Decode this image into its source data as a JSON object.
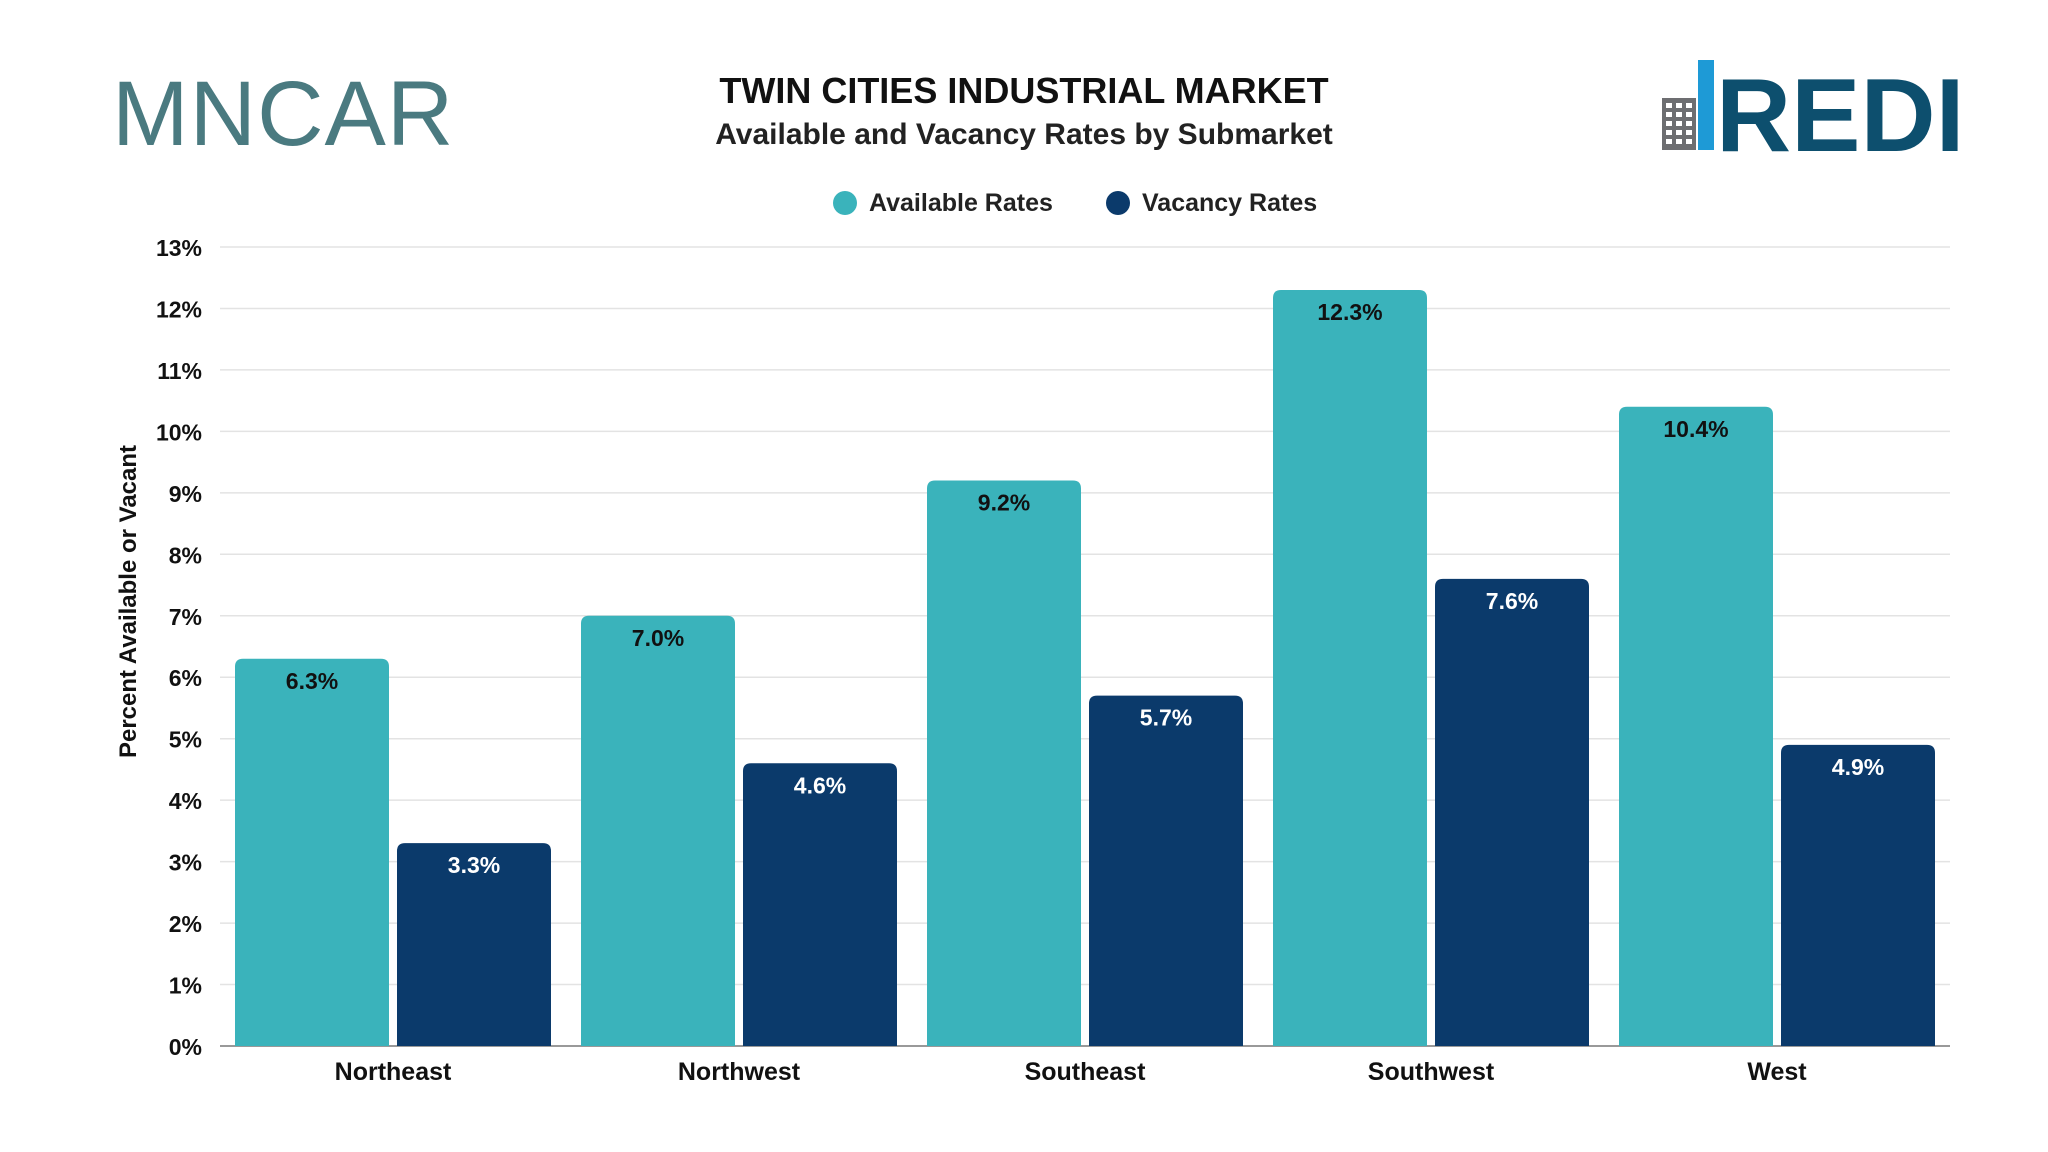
{
  "header": {
    "title": "TWIN CITIES INDUSTRIAL MARKET",
    "subtitle": "Available and Vacancy Rates by Submarket"
  },
  "logos": {
    "left": {
      "text": "MNCAR",
      "color": "#4a7a80"
    },
    "right": {
      "text": "REDI",
      "color": "#0d4f6e",
      "building_colors": [
        "#1e9ad6",
        "#6d6e71"
      ]
    }
  },
  "colors": {
    "available": "#3ab3bb",
    "vacancy": "#0b3a6b",
    "grid": "#e3e3e3",
    "text": "#111111"
  },
  "chart_data": {
    "type": "bar",
    "title": "TWIN CITIES INDUSTRIAL MARKET",
    "subtitle": "Available and Vacancy Rates by Submarket",
    "xlabel": "",
    "ylabel": "Percent Available or Vacant",
    "categories": [
      "Northeast",
      "Northwest",
      "Southeast",
      "Southwest",
      "West"
    ],
    "series": [
      {
        "name": "Available Rates",
        "values": [
          6.3,
          7.0,
          9.2,
          12.3,
          10.4
        ],
        "labels": [
          "6.3%",
          "7.0%",
          "9.2%",
          "12.3%",
          "10.4%"
        ]
      },
      {
        "name": "Vacancy Rates",
        "values": [
          3.3,
          4.6,
          5.7,
          7.6,
          4.9
        ],
        "labels": [
          "3.3%",
          "4.6%",
          "5.7%",
          "7.6%",
          "4.9%"
        ]
      }
    ],
    "ylim": [
      0,
      13
    ],
    "yticks": [
      "0%",
      "1%",
      "2%",
      "3%",
      "4%",
      "5%",
      "6%",
      "7%",
      "8%",
      "9%",
      "10%",
      "11%",
      "12%",
      "13%"
    ],
    "grid": true,
    "legend_position": "top-center"
  }
}
